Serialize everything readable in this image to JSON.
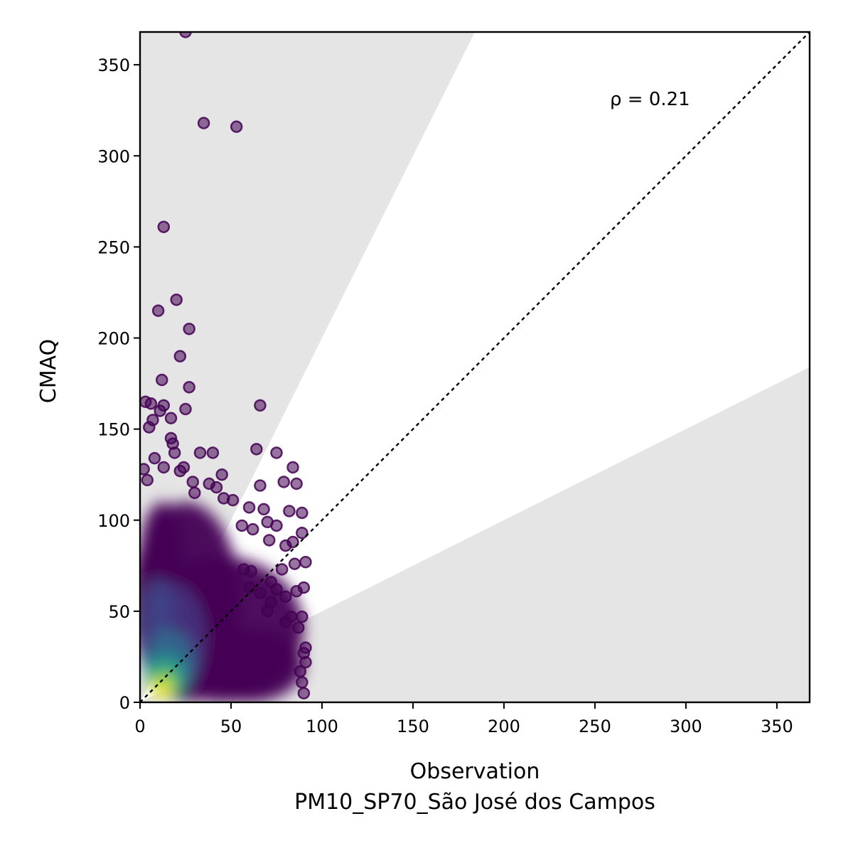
{
  "chart_data": {
    "type": "scatter",
    "xlabel": "Observation",
    "xlabel_sub": "PM10_SP70_São José dos Campos",
    "ylabel": "CMAQ",
    "annotation": "ρ = 0.21",
    "xlim": [
      0,
      368
    ],
    "ylim": [
      0,
      368
    ],
    "xticks": [
      "0",
      "50",
      "100",
      "150",
      "200",
      "250",
      "300",
      "350"
    ],
    "yticks": [
      "0",
      "50",
      "100",
      "150",
      "200",
      "250",
      "300",
      "350"
    ],
    "one_to_one_line": true,
    "factor_of_two_band": [
      0.5,
      2
    ],
    "band_color": "#e5e5e5",
    "point_colormap": "viridis",
    "point_color_low_density": "#440154",
    "point_color_high_density": "#fde725",
    "grid": false,
    "outlier_points": [
      {
        "x": 25,
        "y": 368
      },
      {
        "x": 35,
        "y": 318
      },
      {
        "x": 53,
        "y": 316
      },
      {
        "x": 13,
        "y": 261
      },
      {
        "x": 20,
        "y": 221
      },
      {
        "x": 10,
        "y": 215
      },
      {
        "x": 27,
        "y": 205
      },
      {
        "x": 22,
        "y": 190
      },
      {
        "x": 12,
        "y": 177
      },
      {
        "x": 27,
        "y": 173
      },
      {
        "x": 66,
        "y": 163
      },
      {
        "x": 3,
        "y": 165
      },
      {
        "x": 6,
        "y": 164
      },
      {
        "x": 25,
        "y": 161
      },
      {
        "x": 11,
        "y": 160
      },
      {
        "x": 13,
        "y": 163
      },
      {
        "x": 17,
        "y": 156
      },
      {
        "x": 5,
        "y": 151
      },
      {
        "x": 7,
        "y": 155
      },
      {
        "x": 17,
        "y": 145
      },
      {
        "x": 18,
        "y": 142
      },
      {
        "x": 19,
        "y": 137
      },
      {
        "x": 33,
        "y": 137
      },
      {
        "x": 40,
        "y": 137
      },
      {
        "x": 64,
        "y": 139
      },
      {
        "x": 75,
        "y": 137
      },
      {
        "x": 8,
        "y": 134
      },
      {
        "x": 84,
        "y": 129
      },
      {
        "x": 2,
        "y": 128
      },
      {
        "x": 45,
        "y": 125
      },
      {
        "x": 79,
        "y": 121
      },
      {
        "x": 86,
        "y": 120
      },
      {
        "x": 66,
        "y": 119
      },
      {
        "x": 38,
        "y": 120
      },
      {
        "x": 29,
        "y": 121
      },
      {
        "x": 4,
        "y": 122
      },
      {
        "x": 46,
        "y": 112
      },
      {
        "x": 51,
        "y": 111
      },
      {
        "x": 68,
        "y": 106
      },
      {
        "x": 82,
        "y": 105
      },
      {
        "x": 89,
        "y": 104
      },
      {
        "x": 60,
        "y": 107
      },
      {
        "x": 70,
        "y": 99
      },
      {
        "x": 75,
        "y": 97
      },
      {
        "x": 89,
        "y": 93
      },
      {
        "x": 56,
        "y": 97
      },
      {
        "x": 62,
        "y": 95
      },
      {
        "x": 71,
        "y": 89
      },
      {
        "x": 80,
        "y": 86
      },
      {
        "x": 84,
        "y": 88
      },
      {
        "x": 91,
        "y": 77
      },
      {
        "x": 85,
        "y": 76
      },
      {
        "x": 78,
        "y": 73
      },
      {
        "x": 57,
        "y": 73
      },
      {
        "x": 61,
        "y": 72
      },
      {
        "x": 90,
        "y": 63
      },
      {
        "x": 86,
        "y": 61
      },
      {
        "x": 72,
        "y": 66
      },
      {
        "x": 75,
        "y": 62
      },
      {
        "x": 66,
        "y": 60
      },
      {
        "x": 80,
        "y": 58
      },
      {
        "x": 60,
        "y": 63
      },
      {
        "x": 72,
        "y": 55
      },
      {
        "x": 70,
        "y": 50
      },
      {
        "x": 83,
        "y": 47
      },
      {
        "x": 89,
        "y": 47
      },
      {
        "x": 87,
        "y": 41
      },
      {
        "x": 80,
        "y": 44
      },
      {
        "x": 91,
        "y": 30
      },
      {
        "x": 91,
        "y": 22
      },
      {
        "x": 90,
        "y": 27
      },
      {
        "x": 89,
        "y": 11
      },
      {
        "x": 90,
        "y": 5
      },
      {
        "x": 88,
        "y": 17
      },
      {
        "x": 30,
        "y": 115
      },
      {
        "x": 42,
        "y": 118
      },
      {
        "x": 24,
        "y": 129
      },
      {
        "x": 13,
        "y": 129
      },
      {
        "x": 22,
        "y": 127
      }
    ],
    "density_blobs": [
      {
        "x": 25,
        "y": 55,
        "rx": 30,
        "ry": 55,
        "level": 0.0
      },
      {
        "x": 45,
        "y": 40,
        "rx": 45,
        "ry": 40,
        "level": 0.0
      },
      {
        "x": 60,
        "y": 20,
        "rx": 30,
        "ry": 20,
        "level": 0.0
      },
      {
        "x": 12,
        "y": 80,
        "rx": 12,
        "ry": 30,
        "level": 0.0
      },
      {
        "x": 18,
        "y": 35,
        "rx": 18,
        "ry": 30,
        "level": 0.15
      },
      {
        "x": 10,
        "y": 50,
        "rx": 9,
        "ry": 18,
        "level": 0.2
      },
      {
        "x": 16,
        "y": 22,
        "rx": 14,
        "ry": 18,
        "level": 0.35
      },
      {
        "x": 14,
        "y": 14,
        "rx": 11,
        "ry": 12,
        "level": 0.55
      },
      {
        "x": 13,
        "y": 10,
        "rx": 8,
        "ry": 8,
        "level": 0.8
      },
      {
        "x": 12,
        "y": 7,
        "rx": 5,
        "ry": 5,
        "level": 1.0
      }
    ]
  }
}
